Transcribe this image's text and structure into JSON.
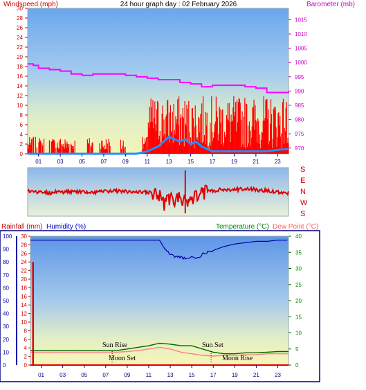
{
  "header": {
    "title": "24 hour graph day : 02 February 2026",
    "left_label": "Windspeed (mph)",
    "right_label": "Barometer (mb)"
  },
  "colors": {
    "wind": "#ff0000",
    "gust_fill": "#ff0000",
    "wind_avg": "#1e90ff",
    "barometer": "#ff00ff",
    "direction": "#e00000",
    "humidity": "#0000aa",
    "temperature": "#006600",
    "dewpoint": "#ff8080",
    "rain": "#dd0000",
    "frame": "#000080",
    "label_red": "#cc0000",
    "label_green": "#008800",
    "label_blue": "#0000cc",
    "label_magenta": "#cc00cc"
  },
  "x_ticks": [
    "01",
    "03",
    "05",
    "07",
    "09",
    "11",
    "13",
    "15",
    "17",
    "19",
    "21",
    "23"
  ],
  "direction_labels": [
    "S",
    "E",
    "N",
    "W",
    "S"
  ],
  "lower": {
    "rain_label": "Rainfall (mm)",
    "humidity_label": "Humidity (%)",
    "temp_label": "Temperature (°C)",
    "dew_label": "Dew Point (°C)",
    "sunrise": "Sun Rise",
    "sunset": "Sun Set",
    "moonset": "Moon Set",
    "moonrise": "Moon Rise"
  },
  "chart_data": [
    {
      "type": "line",
      "name": "wind",
      "xlim": [
        0,
        24
      ],
      "ylim": [
        0,
        30
      ],
      "y_ticks": [
        0,
        2,
        4,
        6,
        8,
        10,
        12,
        14,
        16,
        18,
        20,
        22,
        24,
        26,
        28,
        30
      ],
      "y2_ticks": [
        970,
        975,
        980,
        985,
        990,
        995,
        1000,
        1005,
        1010,
        1015
      ],
      "y2lim": [
        968,
        1019
      ],
      "barometer": {
        "x": [
          0,
          0.5,
          1,
          1.5,
          2,
          3,
          4,
          5,
          6,
          7,
          8,
          9,
          10,
          11,
          12,
          13,
          14,
          15,
          16,
          17,
          18,
          19,
          20,
          21,
          22,
          23,
          24
        ],
        "y": [
          999.5,
          999,
          998,
          998,
          997.5,
          997,
          996,
          995.5,
          996,
          996,
          996,
          995.5,
          995,
          994.5,
          994,
          994,
          993,
          992.5,
          991.5,
          992,
          992,
          992,
          991.5,
          991,
          989.5,
          989.5,
          990
        ]
      },
      "wind_avg": {
        "x": [
          0,
          10,
          11,
          12,
          12.5,
          13,
          13.5,
          14,
          14.5,
          15,
          15.5,
          16,
          16.5,
          17,
          18,
          19,
          20,
          21,
          22,
          23,
          24
        ],
        "y": [
          0,
          0,
          0.5,
          1.5,
          2.5,
          3.5,
          3,
          2.5,
          3,
          2,
          2.5,
          1.5,
          1,
          0.5,
          0.5,
          0.5,
          0.5,
          0.5,
          0.5,
          0.8,
          1
        ]
      },
      "gust_windows": [
        [
          0,
          1.6
        ],
        [
          2,
          4.5
        ],
        [
          5.5,
          6
        ],
        [
          6.5,
          7.6
        ],
        [
          8.5,
          9
        ],
        [
          10.5,
          24
        ]
      ],
      "gust_peak": 12
    },
    {
      "type": "line",
      "name": "wind_direction",
      "xlim": [
        0,
        24
      ],
      "y": {
        "x": [
          0,
          1,
          2,
          3,
          4,
          5,
          6,
          7,
          8,
          9,
          10,
          11,
          12,
          12.5,
          13,
          13.5,
          14,
          14.5,
          15,
          15.5,
          16,
          16.5,
          17,
          18,
          19,
          20,
          21,
          22,
          23,
          24
        ],
        "v": [
          0.48,
          0.5,
          0.52,
          0.5,
          0.5,
          0.5,
          0.5,
          0.5,
          0.48,
          0.5,
          0.5,
          0.5,
          0.55,
          0.75,
          0.65,
          0.7,
          0.6,
          0.7,
          0.65,
          0.6,
          0.55,
          0.5,
          0.48,
          0.45,
          0.45,
          0.45,
          0.45,
          0.48,
          0.5,
          0.52
        ]
      }
    },
    {
      "type": "line",
      "name": "lower",
      "xlim": [
        0,
        24
      ],
      "humidity_ticks": [
        0,
        10,
        20,
        30,
        40,
        50,
        60,
        70,
        80,
        90,
        100
      ],
      "rain_ticks": [
        0,
        2,
        4,
        6,
        8,
        10,
        12,
        14,
        16,
        18,
        20,
        22,
        24,
        26,
        28,
        30
      ],
      "temp_ticks": [
        0,
        5,
        10,
        15,
        20,
        25,
        30,
        35,
        40
      ],
      "humidity": {
        "x": [
          0,
          1,
          2,
          3,
          4,
          5,
          6,
          7,
          8,
          9,
          10,
          11,
          12,
          12.5,
          13,
          13.5,
          14,
          14.5,
          15,
          15.5,
          16,
          16.5,
          17,
          18,
          19,
          20,
          21,
          22,
          23,
          24
        ],
        "y": [
          97,
          97,
          97,
          97,
          97,
          97,
          97,
          97,
          97,
          97,
          97,
          97,
          97,
          90,
          86,
          84,
          84,
          82,
          84,
          83,
          86,
          88,
          89,
          92,
          94,
          95,
          96,
          96,
          97,
          97
        ]
      },
      "temperature": {
        "x": [
          0,
          2,
          4,
          6,
          8,
          9,
          10,
          11,
          12,
          13,
          14,
          15,
          16,
          17,
          18,
          19,
          20,
          21,
          22,
          23,
          24
        ],
        "y": [
          4.5,
          4.5,
          4.5,
          4.5,
          4.5,
          5,
          5.5,
          6,
          6.8,
          6.5,
          6,
          6,
          5,
          4,
          3.5,
          3.5,
          3.8,
          3.8,
          4,
          4.2,
          4.2
        ]
      },
      "dewpoint": {
        "x": [
          0,
          2,
          4,
          6,
          8,
          9,
          10,
          11,
          12,
          13,
          14,
          15,
          16,
          17,
          18,
          19,
          20,
          21,
          22,
          23,
          24
        ],
        "y": [
          4,
          4,
          4,
          4,
          4,
          4.2,
          4.5,
          5,
          5.5,
          5,
          4,
          3.5,
          3,
          2.8,
          3,
          3,
          3.2,
          3.2,
          3.5,
          3.5,
          3.5
        ]
      },
      "rain_bar": {
        "x": 0.1,
        "value": 24
      },
      "sunrise_x": 7.6,
      "sunset_x": 16.8
    }
  ]
}
